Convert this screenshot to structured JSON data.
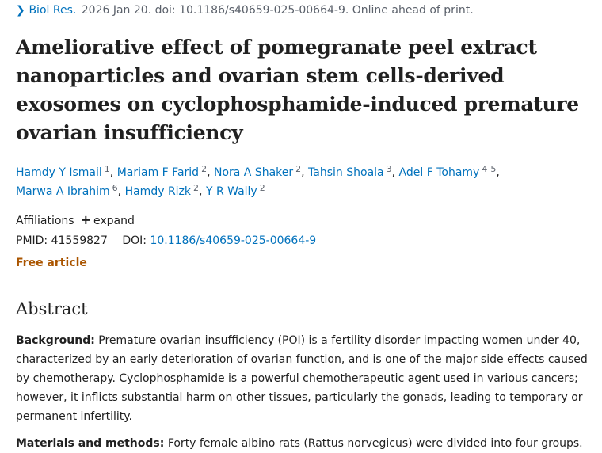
{
  "citation": {
    "journal": "Biol Res.",
    "details": "2026 Jan 20. doi: 10.1186/s40659-025-00664-9. Online ahead of print."
  },
  "title": "Ameliorative effect of pomegranate peel extract nanoparticles and ovarian stem cells-derived exosomes on cyclophosphamide-induced premature ovarian insufficiency",
  "authors": [
    {
      "name": "Hamdy Y Ismail",
      "affiliations": [
        "1"
      ]
    },
    {
      "name": "Mariam F Farid",
      "affiliations": [
        "2"
      ]
    },
    {
      "name": "Nora A Shaker",
      "affiliations": [
        "2"
      ]
    },
    {
      "name": "Tahsin Shoala",
      "affiliations": [
        "3"
      ]
    },
    {
      "name": "Adel F Tohamy",
      "affiliations": [
        "4",
        "5"
      ]
    },
    {
      "name": "Marwa A Ibrahim",
      "affiliations": [
        "6"
      ]
    },
    {
      "name": "Hamdy Rizk",
      "affiliations": [
        "2"
      ]
    },
    {
      "name": "Y R Wally",
      "affiliations": [
        "2"
      ]
    }
  ],
  "affiliations": {
    "label": "Affiliations",
    "expand_label": "expand"
  },
  "identifiers": {
    "pmid_label": "PMID:",
    "pmid": "41559827",
    "doi_label": "DOI:",
    "doi": "10.1186/s40659-025-00664-9"
  },
  "free_article": "Free article",
  "abstract": {
    "heading": "Abstract",
    "background_label": "Background:",
    "background_text": "Premature ovarian insufficiency (POI) is a fertility disorder impacting women under 40, characterized by an early deterioration of ovarian function, and is one of the major side effects caused by chemotherapy. Cyclophosphamide is a powerful chemotherapeutic agent used in various cancers; however, it inflicts substantial harm on other tissues, particularly the gonads, leading to temporary or permanent infertility.",
    "methods_label": "Materials and methods:",
    "methods_text": "Forty female albino rats (Rattus norvegicus) were divided into four groups."
  },
  "colors": {
    "link": "#0071bc",
    "text": "#212121",
    "muted": "#5b616b",
    "free_article": "#aa5500"
  }
}
